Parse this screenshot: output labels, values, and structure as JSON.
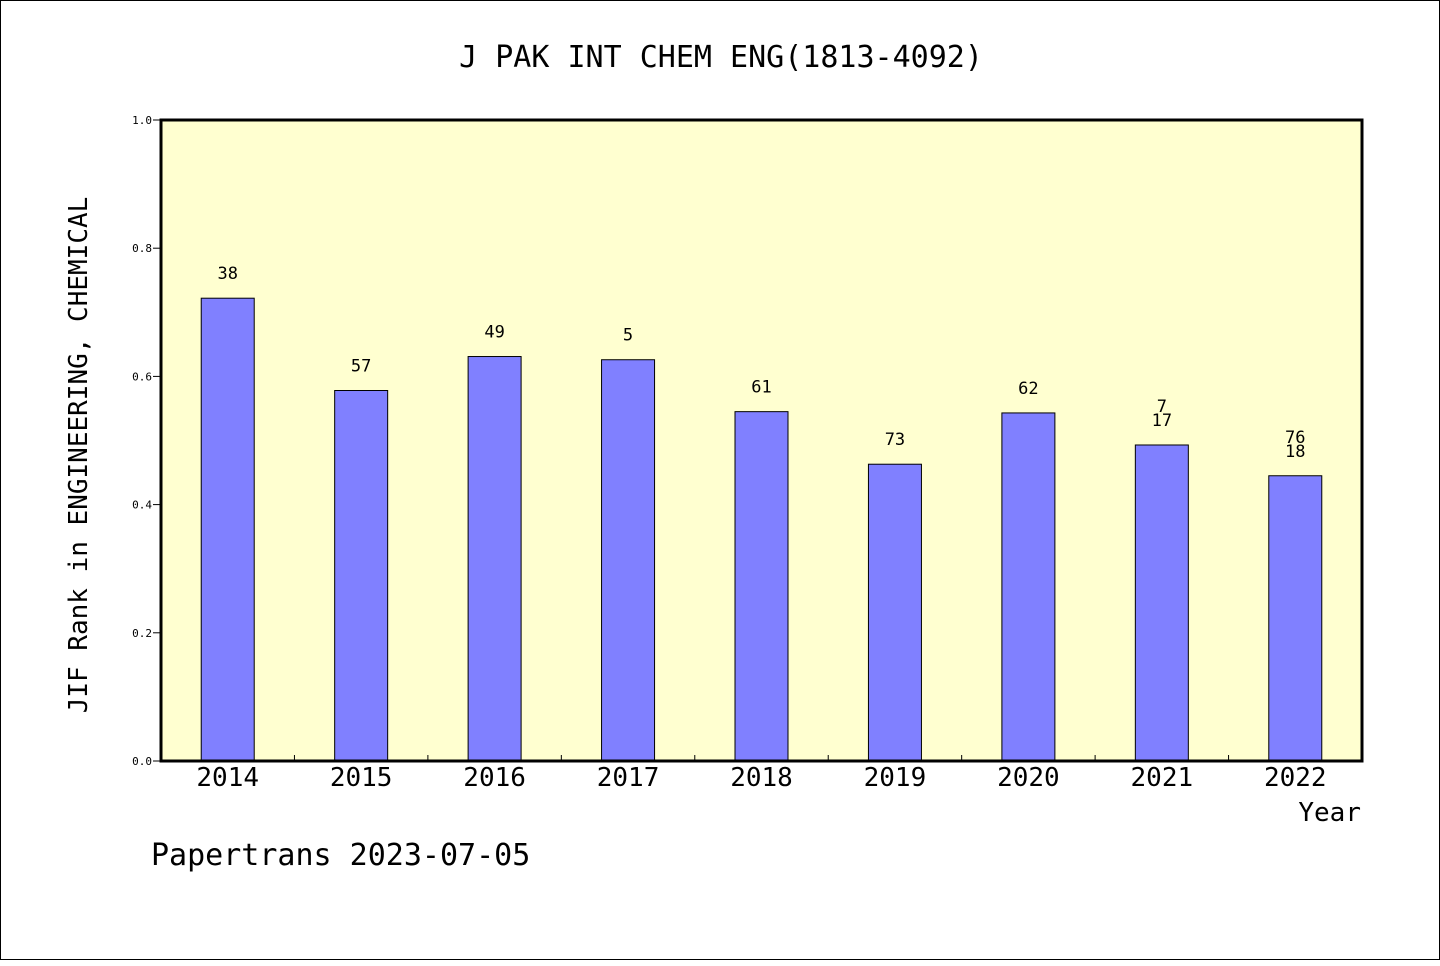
{
  "chart_data": {
    "type": "bar",
    "title": "J PAK INT CHEM ENG(1813-4092)",
    "xlabel": "Year",
    "ylabel": "JIF Rank in ENGINEERING, CHEMICAL",
    "ylim": [
      0,
      1.0
    ],
    "yticks": [
      "0.0",
      "0.2",
      "0.4",
      "0.6",
      "0.8",
      "1.0"
    ],
    "categories": [
      "2014",
      "2015",
      "2016",
      "2017",
      "2018",
      "2019",
      "2020",
      "2021",
      "2022"
    ],
    "values": [
      0.722,
      0.578,
      0.631,
      0.626,
      0.545,
      0.463,
      0.543,
      0.493,
      0.445
    ],
    "bar_labels": [
      [
        "38"
      ],
      [
        "57"
      ],
      [
        "49"
      ],
      [
        "5"
      ],
      [
        "61"
      ],
      [
        "73"
      ],
      [
        "62"
      ],
      [
        "7",
        "17"
      ],
      [
        "76",
        "18"
      ]
    ],
    "grid": false,
    "colors": {
      "bar": "#8080ff",
      "plot_bg": "#ffffd0",
      "axis": "#000000"
    }
  },
  "footer": "Papertrans 2023-07-05"
}
